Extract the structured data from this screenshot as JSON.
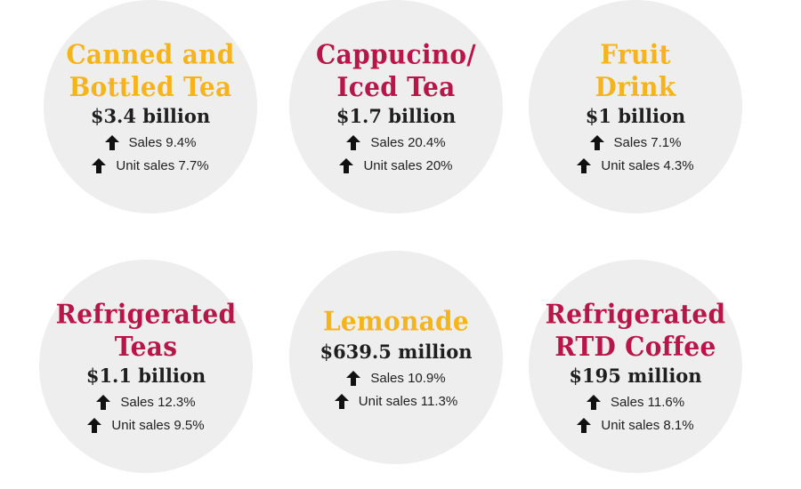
{
  "colors": {
    "gold": "#f6b41c",
    "crimson": "#b8164a",
    "text": "#1f1f1f",
    "circle": "#efeeee"
  },
  "categories": [
    {
      "title_lines": [
        "Canned and",
        "Bottled Tea"
      ],
      "title_color": "gold",
      "value": "$3.4 billion",
      "sales": "Sales 9.4%",
      "unit_sales": "Unit sales 7.7%"
    },
    {
      "title_lines": [
        "Cappucino/",
        "Iced Tea"
      ],
      "title_color": "crimson",
      "value": "$1.7 billion",
      "sales": "Sales 20.4%",
      "unit_sales": "Unit sales 20%"
    },
    {
      "title_lines": [
        "Fruit",
        "Drink"
      ],
      "title_color": "gold",
      "value": "$1 billion",
      "sales": "Sales 7.1%",
      "unit_sales": "Unit sales 4.3%"
    },
    {
      "title_lines": [
        "Refrigerated",
        "Teas"
      ],
      "title_color": "crimson",
      "value": "$1.1 billion",
      "sales": "Sales 12.3%",
      "unit_sales": "Unit sales 9.5%"
    },
    {
      "title_lines": [
        "Lemonade"
      ],
      "title_color": "gold",
      "value": "$639.5 million",
      "sales": "Sales 10.9%",
      "unit_sales": "Unit sales 11.3%"
    },
    {
      "title_lines": [
        "Refrigerated",
        "RTD Coffee"
      ],
      "title_color": "crimson",
      "value": "$195 million",
      "sales": "Sales 11.6%",
      "unit_sales": "Unit sales 8.1%"
    }
  ],
  "icons": {
    "trend": "arrow-up-icon"
  }
}
